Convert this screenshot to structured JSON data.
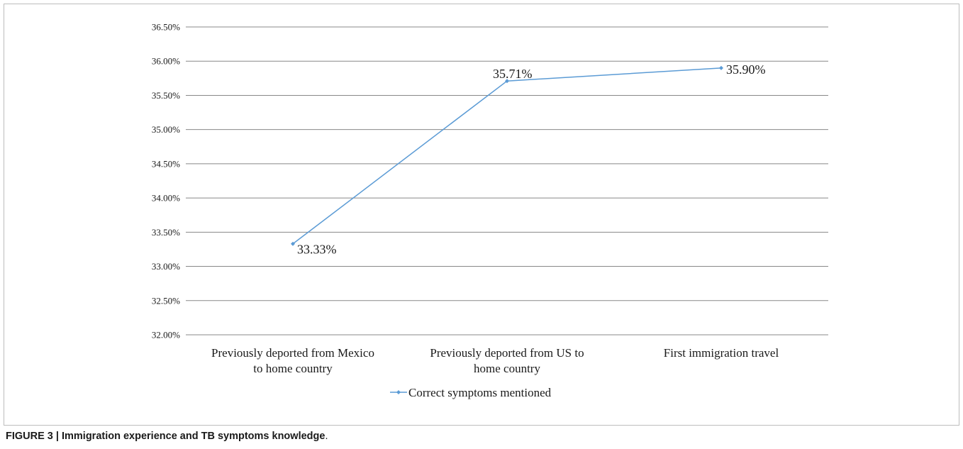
{
  "caption": {
    "bold": "FIGURE 3 | Immigration experience and TB symptoms knowledge",
    "tail": "."
  },
  "chart_data": {
    "type": "line",
    "title": "",
    "xlabel": "",
    "ylabel": "",
    "categories": [
      [
        "Previously deported from Mexico",
        "to home country"
      ],
      [
        "Previously deported from US to",
        "home country"
      ],
      [
        "First immigration travel"
      ]
    ],
    "series": [
      {
        "name": "Correct symptoms mentioned",
        "values": [
          33.33,
          35.71,
          35.9
        ],
        "data_labels": [
          "33.33%",
          "35.71%",
          "35.90%"
        ],
        "color": "#5b9bd5"
      }
    ],
    "ylim": [
      32.0,
      36.5
    ],
    "y_ticks": [
      "32.00%",
      "32.50%",
      "33.00%",
      "33.50%",
      "34.00%",
      "34.50%",
      "35.00%",
      "35.50%",
      "36.00%",
      "36.50%"
    ],
    "grid": true,
    "legend": "bottom",
    "colors": {
      "grid": "#888888",
      "series": "#5b9bd5"
    }
  }
}
